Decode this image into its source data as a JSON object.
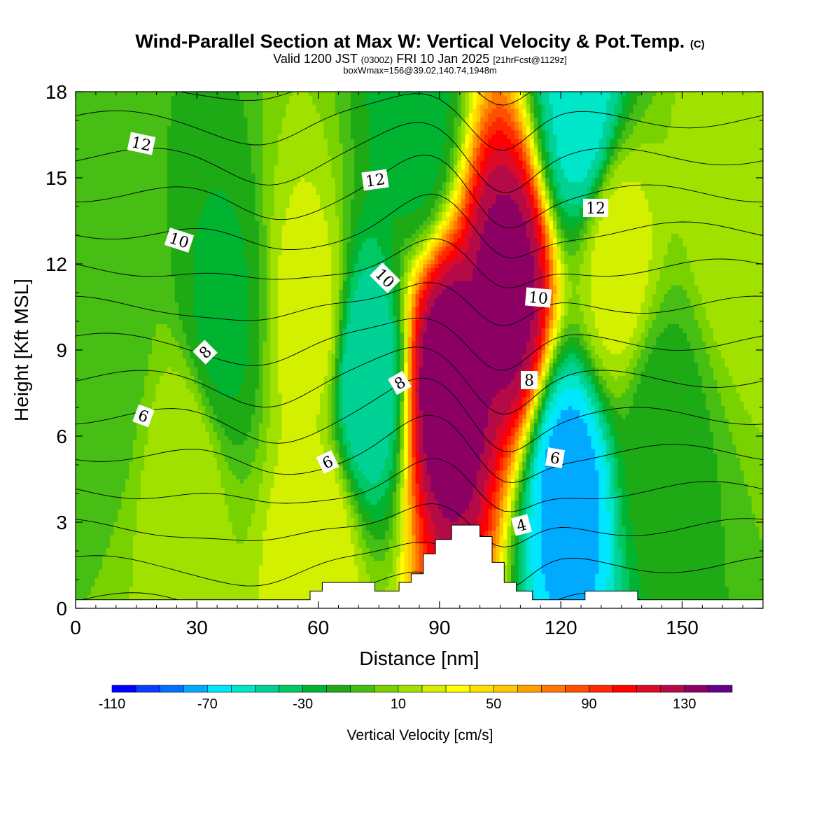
{
  "title": {
    "main": "Wind-Parallel Section at Max W: Vertical Velocity & Pot.Temp.",
    "copyright": "(C)",
    "valid_prefix": "Valid 1200 JST",
    "valid_utc": "(0300Z)",
    "valid_date": "FRI 10 Jan 2025",
    "forecast": "[21hrFcst@1129z]",
    "box_info": "boxWmax=156@39.02,140.74,1948m"
  },
  "chart_data": {
    "type": "heatmap",
    "xlabel": "Distance [nm]",
    "ylabel": "Height [Kft MSL]",
    "xlim": [
      0,
      170
    ],
    "ylim": [
      0,
      18
    ],
    "x_ticks": [
      0,
      30,
      60,
      90,
      120,
      150
    ],
    "y_ticks": [
      0,
      3,
      6,
      9,
      12,
      15,
      18
    ],
    "colorbar": {
      "label": "Vertical Velocity [cm/s]",
      "min": -110,
      "max": 150,
      "step": 10,
      "tick_labels": [
        -110,
        -70,
        -30,
        10,
        50,
        90,
        130
      ],
      "colors": [
        "#0000ff",
        "#0a3cff",
        "#0070ff",
        "#00aaff",
        "#00e6ff",
        "#00e6c8",
        "#00d296",
        "#00c864",
        "#00b432",
        "#1eaa14",
        "#46be14",
        "#78d200",
        "#a0e100",
        "#d2f000",
        "#ffff00",
        "#ffe100",
        "#ffc800",
        "#ffa000",
        "#ff7800",
        "#ff5000",
        "#ff2800",
        "#ff0000",
        "#dc0a28",
        "#b40a46",
        "#8c0064",
        "#64008c"
      ]
    },
    "w_features": [
      {
        "x": 92,
        "y": 7.8,
        "value": 140
      },
      {
        "x": 107,
        "y": 11,
        "value": 135
      },
      {
        "x": 72,
        "y": 8,
        "value": -50
      },
      {
        "x": 122,
        "y": 4,
        "value": -75
      },
      {
        "x": 125,
        "y": 17.5,
        "value": -55
      },
      {
        "x": 58,
        "y": 10,
        "value": 25
      },
      {
        "x": 60,
        "y": 2,
        "value": 30
      },
      {
        "x": 134,
        "y": 12,
        "value": 25
      },
      {
        "x": 163,
        "y": 14.5,
        "value": 20
      },
      {
        "x": 27,
        "y": 4.5,
        "value": 18
      },
      {
        "x": 36,
        "y": 10,
        "value": -22
      },
      {
        "x": 8,
        "y": 9,
        "value": -5
      },
      {
        "x": 145,
        "y": 6,
        "value": -15
      },
      {
        "x": 84,
        "y": 17,
        "value": -25
      }
    ],
    "theta_contours": [
      {
        "level": 4,
        "labeled": true
      },
      {
        "level": 6,
        "labeled": true
      },
      {
        "level": 8,
        "labeled": true
      },
      {
        "level": 10,
        "labeled": true
      },
      {
        "level": 12,
        "labeled": true
      }
    ],
    "contour_labels": [
      "12",
      "12",
      "12",
      "10",
      "10",
      "10",
      "8",
      "8",
      "8",
      "6",
      "6",
      "6",
      "4"
    ],
    "terrain": [
      {
        "x": 0,
        "h": 0.3
      },
      {
        "x": 58,
        "h": 0.3
      },
      {
        "x": 58,
        "h": 0.6
      },
      {
        "x": 61,
        "h": 0.6
      },
      {
        "x": 61,
        "h": 0.9
      },
      {
        "x": 74,
        "h": 0.9
      },
      {
        "x": 74,
        "h": 0.6
      },
      {
        "x": 80,
        "h": 0.6
      },
      {
        "x": 80,
        "h": 0.9
      },
      {
        "x": 83,
        "h": 0.9
      },
      {
        "x": 83,
        "h": 1.2
      },
      {
        "x": 86,
        "h": 1.2
      },
      {
        "x": 86,
        "h": 1.9
      },
      {
        "x": 89,
        "h": 1.9
      },
      {
        "x": 89,
        "h": 2.4
      },
      {
        "x": 93,
        "h": 2.4
      },
      {
        "x": 93,
        "h": 2.9
      },
      {
        "x": 100,
        "h": 2.9
      },
      {
        "x": 100,
        "h": 2.5
      },
      {
        "x": 103,
        "h": 2.5
      },
      {
        "x": 103,
        "h": 1.6
      },
      {
        "x": 106,
        "h": 1.6
      },
      {
        "x": 106,
        "h": 0.9
      },
      {
        "x": 109,
        "h": 0.9
      },
      {
        "x": 109,
        "h": 0.6
      },
      {
        "x": 113,
        "h": 0.6
      },
      {
        "x": 113,
        "h": 0.3
      },
      {
        "x": 126,
        "h": 0.3
      },
      {
        "x": 126,
        "h": 0.6
      },
      {
        "x": 139,
        "h": 0.6
      },
      {
        "x": 139,
        "h": 0.3
      },
      {
        "x": 170,
        "h": 0.3
      }
    ]
  }
}
